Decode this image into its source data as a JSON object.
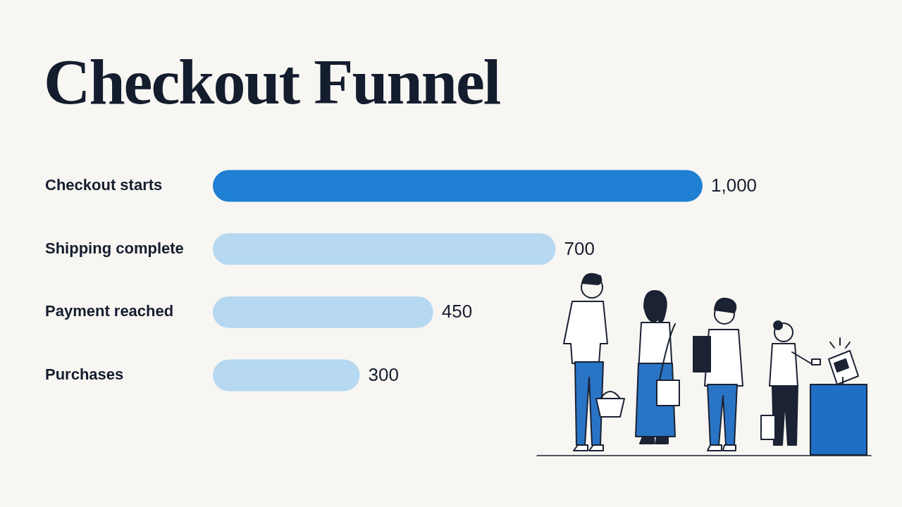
{
  "chart_data": {
    "type": "bar",
    "title": "Checkout Funnel",
    "orientation": "horizontal",
    "categories": [
      "Checkout starts",
      "Shipping complete",
      "Payment reached",
      "Purchases"
    ],
    "values": [
      1000,
      700,
      450,
      300
    ],
    "value_labels": [
      "1,000",
      "700",
      "450",
      "300"
    ],
    "colors": [
      "#1f7fd2",
      "#b6d8f1",
      "#b6d8f1",
      "#b6d8f1"
    ],
    "xlim": [
      0,
      1000
    ],
    "grid": false,
    "data_labels": true,
    "tick_labels": "y"
  }
}
